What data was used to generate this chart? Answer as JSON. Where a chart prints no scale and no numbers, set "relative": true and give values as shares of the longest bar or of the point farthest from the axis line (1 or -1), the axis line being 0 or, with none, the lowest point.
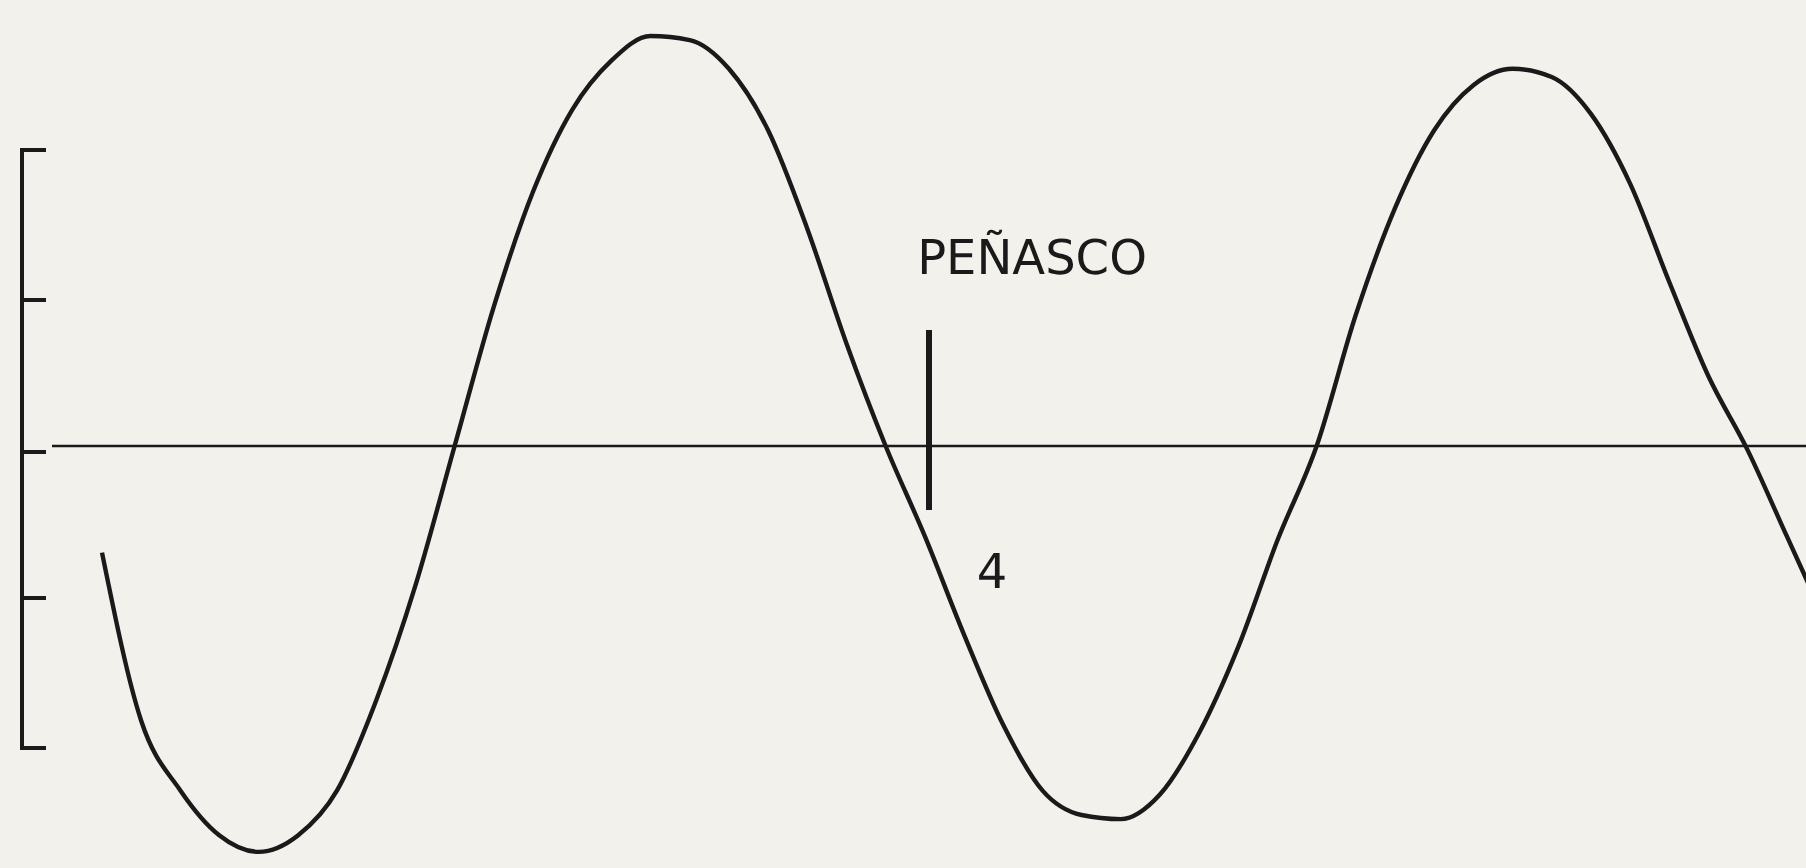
{
  "chart_data": {
    "type": "line",
    "relative": true,
    "marker": "none",
    "line_style": "solid",
    "categories": [
      null,
      null,
      null,
      null,
      null,
      null,
      null,
      null,
      null,
      null,
      null,
      null,
      null,
      null,
      null,
      null,
      null,
      null,
      null,
      null,
      null,
      null,
      null,
      null,
      null,
      null,
      null,
      null,
      null,
      null,
      null,
      null,
      null,
      null,
      null,
      null,
      null,
      null,
      null,
      null,
      null,
      null,
      null,
      null,
      null
    ],
    "series": [
      {
        "color": "#1a1a1a",
        "values": [
          -0.26,
          -0.67,
          -0.84,
          -0.95,
          -0.99,
          -0.95,
          -0.84,
          -0.62,
          -0.34,
          0,
          0.34,
          0.62,
          0.82,
          0.94,
          1.0,
          0.99,
          0.92,
          0.77,
          0.53,
          0.25,
          0,
          -0.22,
          -0.46,
          -0.68,
          -0.84,
          -0.9,
          -0.91,
          -0.85,
          -0.7,
          -0.49,
          -0.23,
          0,
          0.32,
          0.58,
          0.77,
          0.88,
          0.92,
          0.9,
          0.81,
          0.64,
          0.4,
          0.17,
          -0.01,
          -0.22,
          -0.43
        ]
      }
    ],
    "annotations": [
      "PEÑASCO",
      "4"
    ]
  }
}
